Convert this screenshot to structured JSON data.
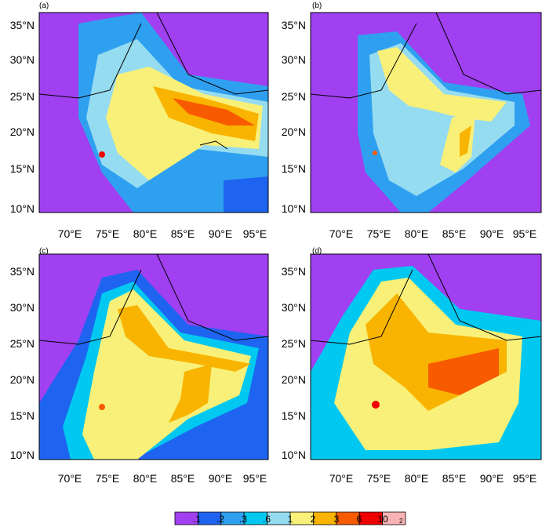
{
  "panels": [
    {
      "label": "(a)"
    },
    {
      "label": "(b)"
    },
    {
      "label": "(c)"
    },
    {
      "label": "(d)"
    }
  ],
  "latitude_labels": [
    "35°N",
    "30°N",
    "25°N",
    "20°N",
    "15°N",
    "10°N"
  ],
  "longitude_labels": [
    "70°E",
    "75°E",
    "80°E",
    "85°E",
    "90°E",
    "95°E"
  ],
  "colorbar": {
    "labels": [
      ".1",
      ".2",
      ".3",
      ".6",
      "1",
      "2",
      "3",
      "6",
      "10"
    ],
    "colors": [
      "#a040f0",
      "#1e64f0",
      "#2fa0f0",
      "#00c8f0",
      "#96dcf0",
      "#f8f078",
      "#f8b400",
      "#f85a00",
      "#f00000",
      "#f8b4b4"
    ],
    "unit_superscript": "2"
  }
}
